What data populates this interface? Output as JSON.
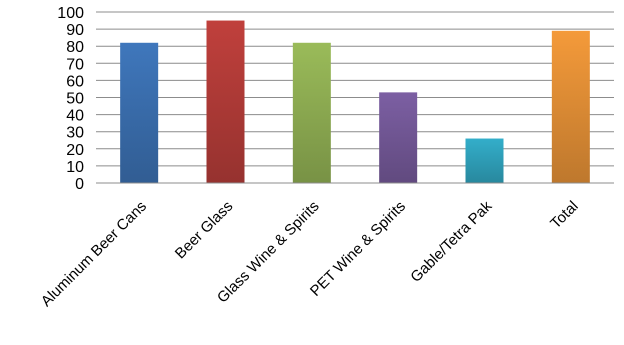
{
  "chart_data": {
    "type": "bar",
    "title": "",
    "xlabel": "",
    "ylabel": "",
    "categories": [
      "Aluminum Beer Cans",
      "Beer Glass",
      "Glass Wine & Spirits",
      "PET Wine & Spirits",
      "Gable/Tetra Pak",
      "Total"
    ],
    "values": [
      82,
      95,
      82,
      53,
      26,
      89
    ],
    "colors": [
      "#3F77BC",
      "#C0403C",
      "#9ABB59",
      "#7C5FA3",
      "#33AECA",
      "#F49A3A"
    ],
    "ylim": [
      0,
      100
    ],
    "yticks": [
      0,
      10,
      20,
      30,
      40,
      50,
      60,
      70,
      80,
      90,
      100
    ],
    "grid": true,
    "legend": "none"
  }
}
